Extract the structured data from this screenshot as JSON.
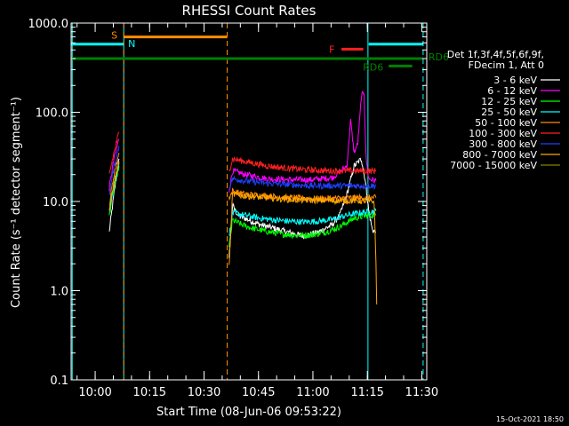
{
  "chart_data": {
    "type": "line",
    "title": "RHESSI Count Rates",
    "xlabel": "Start Time (08-Jun-06 09:53:22)",
    "ylabel": "Count Rate (s⁻¹ detector segment⁻¹)",
    "yscale": "log",
    "ylim": [
      0.1,
      1000
    ],
    "xlim_minutes": [
      0,
      98
    ],
    "x_ticks": [
      {
        "t": 6.63,
        "label": "10:00"
      },
      {
        "t": 21.63,
        "label": "10:15"
      },
      {
        "t": 36.63,
        "label": "10:30"
      },
      {
        "t": 51.63,
        "label": "10:45"
      },
      {
        "t": 66.63,
        "label": "11:00"
      },
      {
        "t": 81.63,
        "label": "11:15"
      },
      {
        "t": 96.63,
        "label": "11:30"
      }
    ],
    "y_ticks": [
      {
        "v": 0.1,
        "label": "0.1"
      },
      {
        "v": 1,
        "label": "1.0"
      },
      {
        "v": 10,
        "label": "10.0"
      },
      {
        "v": 100,
        "label": "100.0"
      },
      {
        "v": 1000,
        "label": "1000.0"
      }
    ],
    "legend": {
      "header": [
        "Det 1f,3f,4f,5f,6f,9f,",
        "FDecim 1, Att 0"
      ],
      "position": "right"
    },
    "series": [
      {
        "name": "3 - 6 keV",
        "color": "#ffffff",
        "segments": [
          {
            "x": [
              10.5,
              11.8,
              13.2
            ],
            "y": [
              4.5,
              12,
              30
            ]
          },
          {
            "x": [
              43.5,
              44.5,
              46,
              49,
              52,
              56,
              60,
              64,
              68,
              72,
              74,
              76,
              78,
              80,
              81,
              82,
              83,
              84
            ],
            "y": [
              2.2,
              9,
              7,
              6.2,
              5.5,
              5,
              4.5,
              4.1,
              4.5,
              5.5,
              7,
              12,
              25,
              30,
              18,
              8,
              4.8,
              4.5
            ]
          }
        ]
      },
      {
        "name": "6 - 12 keV",
        "color": "#ff00ff",
        "segments": [
          {
            "x": [
              10.5,
              11.8,
              13.2
            ],
            "y": [
              14,
              30,
              50
            ]
          },
          {
            "x": [
              43.5,
              44.5,
              48,
              54,
              60,
              66,
              72,
              76,
              77,
              78,
              79,
              80,
              80.7,
              81.3,
              82,
              84
            ],
            "y": [
              13,
              22,
              20,
              18,
              17.5,
              17.5,
              18.5,
              25,
              80,
              35,
              45,
              150,
              170,
              30,
              18,
              17
            ]
          }
        ]
      },
      {
        "name": "12 - 25 keV",
        "color": "#00ff00",
        "segments": [
          {
            "x": [
              10.5,
              11.8,
              13.2
            ],
            "y": [
              7,
              14,
              25
            ]
          },
          {
            "x": [
              43.5,
              44.5,
              47,
              50,
              54,
              58,
              62,
              66,
              70,
              74,
              78,
              82,
              84
            ],
            "y": [
              3,
              6.2,
              5.5,
              5,
              4.6,
              4.3,
              4.2,
              4.2,
              4.5,
              5.2,
              6.5,
              7,
              7
            ]
          }
        ]
      },
      {
        "name": "25 - 50 keV",
        "color": "#00ffff",
        "segments": [
          {
            "x": [
              10.5,
              11.8,
              13.2
            ],
            "y": [
              8,
              16,
              27
            ]
          },
          {
            "x": [
              43.5,
              44.5,
              48,
              52,
              56,
              60,
              64,
              68,
              72,
              76,
              80,
              84
            ],
            "y": [
              4,
              7.5,
              7,
              6.5,
              6.2,
              6,
              5.9,
              6,
              6.3,
              7,
              7.5,
              7.8
            ]
          }
        ]
      },
      {
        "name": "50 - 100 keV",
        "color": "#ff8c00",
        "segments": [
          {
            "x": [
              10.5,
              11.8,
              13.2
            ],
            "y": [
              9,
              20,
              35
            ]
          },
          {
            "x": [
              43.5,
              44.5,
              48,
              54,
              60,
              66,
              72,
              78,
              84
            ],
            "y": [
              11,
              13,
              12,
              11.5,
              11,
              10.8,
              10.8,
              11,
              11
            ]
          }
        ]
      },
      {
        "name": "100 - 300 keV",
        "color": "#ff2020",
        "segments": [
          {
            "x": [
              10.5,
              11.8,
              13.2
            ],
            "y": [
              20,
              35,
              60
            ]
          },
          {
            "x": [
              43.5,
              44.5,
              48,
              54,
              60,
              66,
              72,
              78,
              84
            ],
            "y": [
              22,
              30,
              28,
              25,
              23.5,
              22.5,
              22,
              22,
              22
            ]
          }
        ]
      },
      {
        "name": "300 - 800 keV",
        "color": "#2040ff",
        "segments": [
          {
            "x": [
              10.5,
              11.8,
              13.2
            ],
            "y": [
              12,
              24,
              42
            ]
          },
          {
            "x": [
              43.5,
              44.5,
              48,
              54,
              60,
              66,
              72,
              78,
              84
            ],
            "y": [
              14,
              18,
              17,
              16,
              15.5,
              15,
              15,
              15,
              15
            ]
          }
        ]
      },
      {
        "name": "800 - 7000 keV",
        "color": "#ffa500",
        "segments": [
          {
            "x": [
              10.5,
              11.8,
              13.2
            ],
            "y": [
              8,
              16,
              28
            ]
          },
          {
            "x": [
              43.5,
              44.5,
              48,
              54,
              60,
              66,
              72,
              78,
              83.5,
              84,
              84.2
            ],
            "y": [
              1.8,
              12,
              11.5,
              11,
              10.5,
              10.3,
              10.2,
              10.2,
              10,
              2,
              0.7
            ]
          }
        ]
      },
      {
        "name": "7000 - 15000 keV",
        "color": "#808000",
        "segments": []
      }
    ],
    "attenuator_bars": [
      {
        "label": "N",
        "color": "#00ffff",
        "x0": 0,
        "x1": 14.5,
        "y": 580,
        "label_color": "#00ffff"
      },
      {
        "label": "",
        "color": "#00ffff",
        "x0": 82,
        "x1": 97,
        "y": 580,
        "label_color": "#00ffff"
      },
      {
        "label": "S",
        "color": "#ff8c00",
        "x0": 14.5,
        "x1": 43,
        "y": 700,
        "label_color": "#ff8c00"
      },
      {
        "label": "F",
        "color": "#ff2020",
        "x0": 74.5,
        "x1": 80.5,
        "y": 510,
        "label_color": "#ff2020"
      },
      {
        "label": "RD6",
        "color": "#008000",
        "x0": 0,
        "x1": 97,
        "y": 400,
        "label_color": "#008000"
      },
      {
        "label": "RD6",
        "color": "#008000",
        "x0": 87.5,
        "x1": 94,
        "y": 330,
        "label_color": "#008000"
      }
    ],
    "vertical_markers": [
      {
        "t": 0.3,
        "color": "#00ffff",
        "dash": false
      },
      {
        "t": 14.5,
        "color": "#00ffff",
        "dash": false
      },
      {
        "t": 14.5,
        "color": "#ff8c00",
        "dash": true
      },
      {
        "t": 43,
        "color": "#ff8c00",
        "dash": true
      },
      {
        "t": 81.8,
        "color": "#00ffff",
        "dash": false
      },
      {
        "t": 97,
        "color": "#00ffff",
        "dash": true
      }
    ]
  },
  "footer": {
    "date": "15-Oct-2021 18:50"
  }
}
